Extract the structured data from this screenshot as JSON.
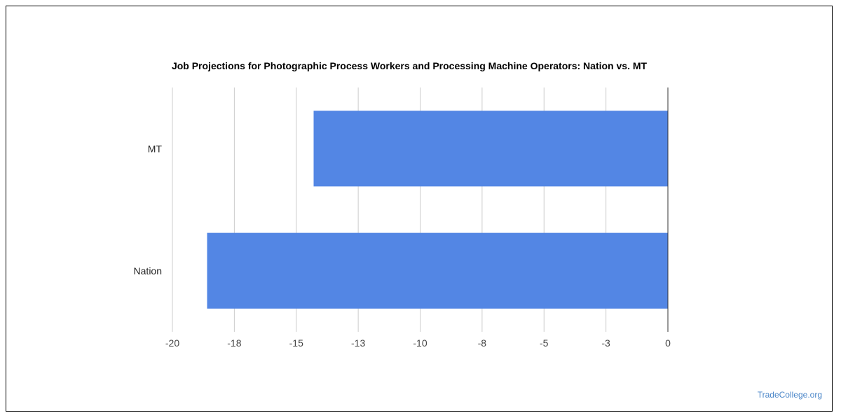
{
  "chart_data": {
    "type": "bar",
    "orientation": "horizontal",
    "title": "Job Projections for Photographic Process Workers and Processing Machine Operators: Nation vs. MT",
    "categories": [
      "MT",
      "Nation"
    ],
    "values": [
      -14.3,
      -18.6
    ],
    "x_ticks": [
      "-20",
      "-18",
      "-15",
      "-13",
      "-10",
      "-8",
      "-5",
      "-3",
      "0"
    ],
    "xlim": [
      -20,
      0
    ],
    "grid": true,
    "legend": "none",
    "bar_color": "#5386e4"
  },
  "watermark": "TradeCollege.org"
}
